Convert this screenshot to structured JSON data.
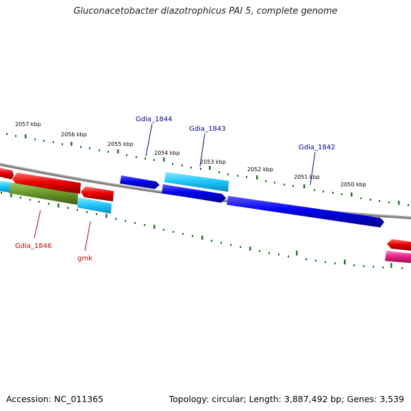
{
  "title": "Gluconacetobacter diazotrophicus PAI 5, complete genome",
  "footer": {
    "accession": "Accession: NC_011365",
    "summary": "Topology: circular; Length: 3,887,492 bp; Genes: 3,539"
  },
  "ticks": [
    "2057 kbp",
    "2056 kbp",
    "2055 kbp",
    "2054 kbp",
    "2053 kbp",
    "2052 kbp",
    "2051 kbp",
    "2050 kbp"
  ],
  "genes": [
    {
      "name": "Gdia_1844",
      "strand": "forward"
    },
    {
      "name": "Gdia_1843",
      "strand": "forward"
    },
    {
      "name": "Gdia_1842",
      "strand": "forward"
    },
    {
      "name": "Gdia_1846",
      "strand": "reverse"
    },
    {
      "name": "gmk",
      "strand": "reverse"
    }
  ],
  "colors": {
    "forward": "#0000ee",
    "forward_light": "#22c8ff",
    "reverse": "#ee0000",
    "reverse_green": "#6b9a2a",
    "reverse_magenta": "#ee2288",
    "backbone": "#808080",
    "tick": "#1e7a1e",
    "label_forward": "#000099",
    "label_reverse": "#cc0000"
  }
}
